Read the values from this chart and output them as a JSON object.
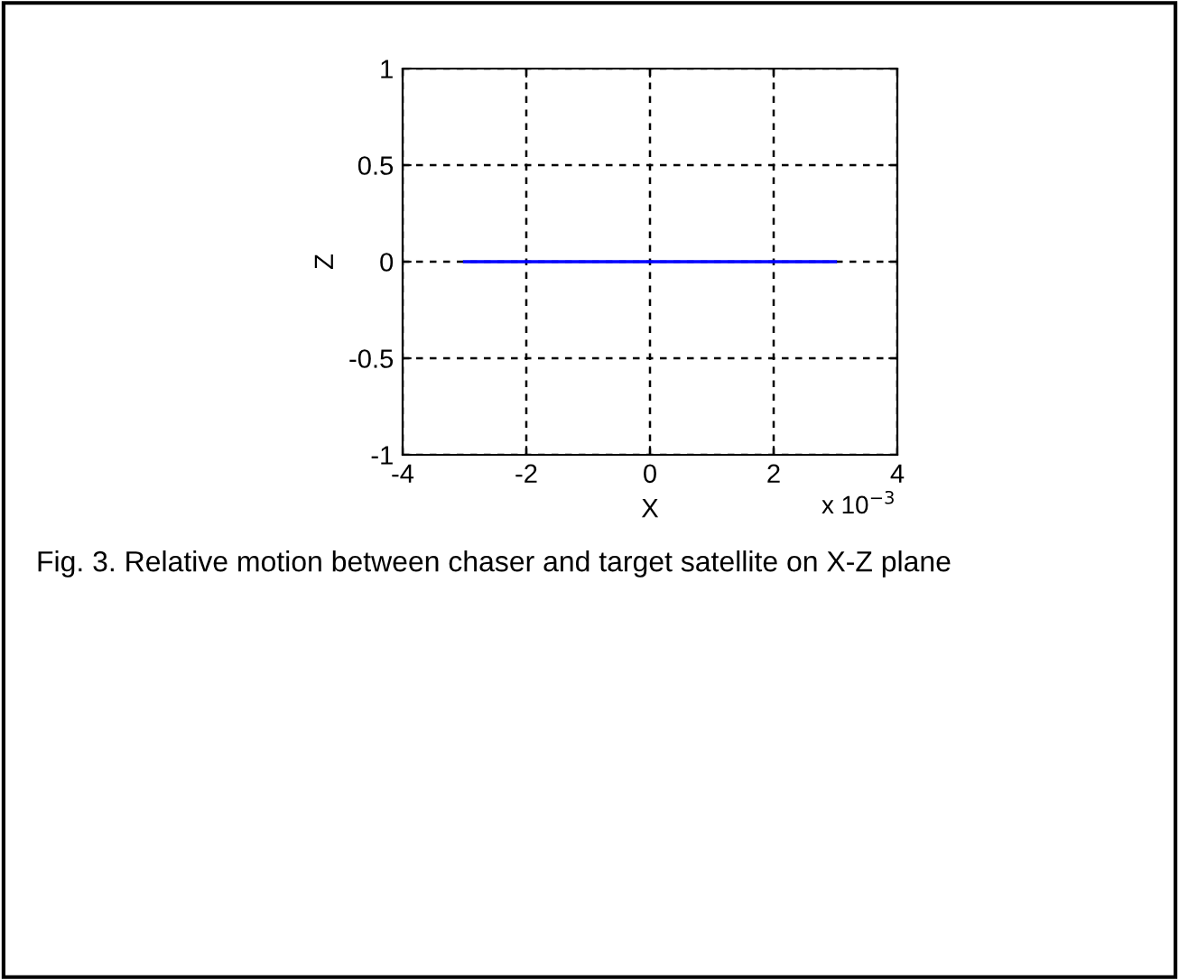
{
  "chart_data": {
    "type": "line",
    "xlabel": "X",
    "ylabel": "Z",
    "x": [
      -3,
      3
    ],
    "series": [
      {
        "color": "#0000ff",
        "values": [
          0,
          0
        ]
      }
    ],
    "xlim": [
      -4,
      4
    ],
    "xticks": [
      -4,
      -2,
      0,
      2,
      4
    ],
    "ylim": [
      -1,
      1
    ],
    "yticks": [
      -1,
      -0.5,
      0,
      0.5,
      1
    ],
    "grid": true,
    "line_style": "solid",
    "legend": false,
    "annotations": [
      "x 10$^{−3}$",
      "Fig. 3. Relative motion between chaser and target satellite on X-Z plane"
    ]
  }
}
